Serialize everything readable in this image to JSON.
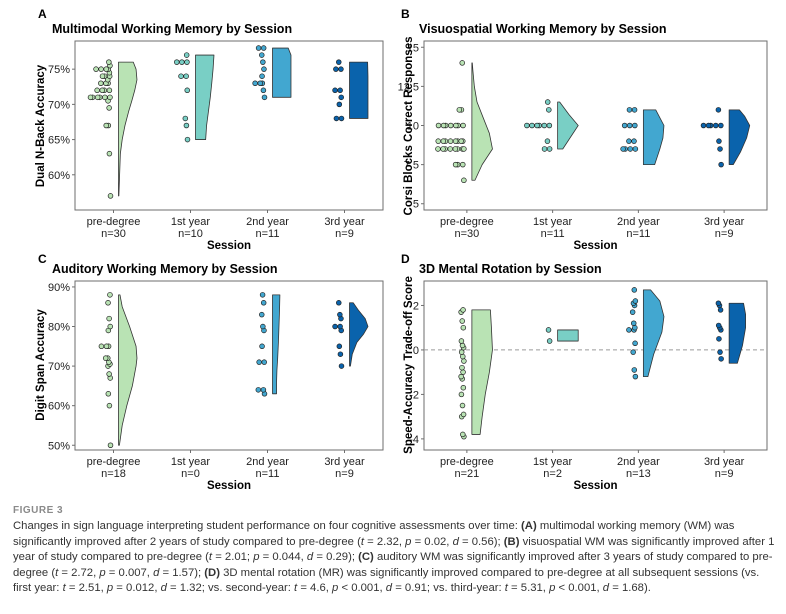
{
  "colors": {
    "pre-degree": "#b9e3b4",
    "1st year": "#79cfc5",
    "2nd year": "#42a7d0",
    "3rd year": "#0a63ac",
    "frame": "#6e6e6e",
    "reference_line": "#9a9a9a"
  },
  "chart_data": [
    {
      "type": "raincloud",
      "panel_letter": "A",
      "title": "Multimodal Working Memory by Session",
      "xlabel": "Session",
      "ylabel": "Dual N-Back Accuracy",
      "ylim": [
        55,
        79
      ],
      "yticks": [
        60,
        65,
        70,
        75
      ],
      "ytick_labels": [
        "60%",
        "65%",
        "70%",
        "75%"
      ],
      "categories": [
        "pre-degree",
        "1st year",
        "2nd year",
        "3rd year"
      ],
      "n_labels": [
        "n=30",
        "n=10",
        "n=11",
        "n=9"
      ],
      "grid": false,
      "reference_line": null,
      "series": [
        {
          "category": "pre-degree",
          "points": [
            57,
            63,
            67,
            67,
            69.5,
            70.5,
            71,
            71,
            71,
            71,
            71,
            71,
            72,
            72,
            72,
            72,
            73,
            73,
            73,
            73.5,
            74,
            74,
            74,
            74.5,
            75,
            75,
            75,
            75,
            75.5,
            76
          ],
          "density": [
            [
              57,
              0.02
            ],
            [
              60,
              0.06
            ],
            [
              63,
              0.1
            ],
            [
              65,
              0.2
            ],
            [
              67,
              0.35
            ],
            [
              69,
              0.55
            ],
            [
              70.5,
              0.72
            ],
            [
              72,
              0.88
            ],
            [
              73.5,
              1.0
            ],
            [
              75,
              0.95
            ],
            [
              76,
              0.8
            ]
          ]
        },
        {
          "category": "1st year",
          "points": [
            65,
            67,
            68,
            72,
            74,
            74,
            76,
            76,
            76,
            77
          ],
          "density": [
            [
              65,
              0.55
            ],
            [
              67,
              0.6
            ],
            [
              69,
              0.7
            ],
            [
              71,
              0.8
            ],
            [
              73,
              0.88
            ],
            [
              75,
              0.95
            ],
            [
              77,
              1.0
            ]
          ]
        },
        {
          "category": "2nd year",
          "points": [
            71,
            72,
            73,
            73,
            73,
            74,
            75,
            76,
            77,
            78,
            78
          ],
          "density": [
            [
              71,
              1.0
            ],
            [
              72.5,
              1.0
            ],
            [
              74,
              1.0
            ],
            [
              75.5,
              1.0
            ],
            [
              77,
              1.0
            ],
            [
              78,
              0.85
            ]
          ]
        },
        {
          "category": "3rd year",
          "points": [
            68,
            68,
            70,
            71,
            72,
            72,
            75,
            75,
            76
          ],
          "density": [
            [
              68,
              1.0
            ],
            [
              70,
              1.0
            ],
            [
              72,
              1.0
            ],
            [
              74,
              1.0
            ],
            [
              76,
              0.98
            ]
          ]
        }
      ]
    },
    {
      "type": "raincloud",
      "panel_letter": "B",
      "title": "Visuospatial Working Memory by Session",
      "xlabel": "Session",
      "ylabel": "Corsi Blocks Correct Responses",
      "ylim": [
        4.6,
        15.4
      ],
      "yticks": [
        5,
        7.5,
        10,
        12.5,
        15
      ],
      "ytick_labels": [
        "5",
        "7.5",
        "10",
        "12.5",
        "15"
      ],
      "categories": [
        "pre-degree",
        "1st year",
        "2nd year",
        "3rd year"
      ],
      "n_labels": [
        "n=30",
        "n=11",
        "n=11",
        "n=9"
      ],
      "grid": false,
      "reference_line": null,
      "series": [
        {
          "category": "pre-degree",
          "points": [
            6.5,
            7.5,
            7.5,
            7.5,
            8.5,
            8.5,
            8.5,
            8.5,
            8.5,
            8.5,
            8.5,
            8.5,
            9,
            9,
            9,
            9,
            9,
            9,
            9,
            9,
            10,
            10,
            10,
            10,
            10,
            10,
            10,
            11,
            11,
            14
          ],
          "density": [
            [
              6.5,
              0.15
            ],
            [
              7.5,
              0.5
            ],
            [
              8.5,
              1.0
            ],
            [
              9.5,
              0.85
            ],
            [
              10.5,
              0.55
            ],
            [
              11.5,
              0.25
            ],
            [
              12.5,
              0.12
            ],
            [
              13.5,
              0.05
            ],
            [
              14,
              0.02
            ]
          ]
        },
        {
          "category": "1st year",
          "points": [
            8.5,
            8.5,
            9,
            10,
            10,
            10,
            10,
            10,
            10,
            11,
            11.5
          ],
          "density": [
            [
              8.5,
              0.25
            ],
            [
              9.2,
              0.6
            ],
            [
              10,
              1.0
            ],
            [
              10.7,
              0.55
            ],
            [
              11.5,
              0.1
            ]
          ]
        },
        {
          "category": "2nd year",
          "points": [
            8.5,
            8.5,
            8.5,
            8.5,
            9,
            9,
            10,
            10,
            10,
            11,
            11
          ],
          "density": [
            [
              7.5,
              0.55
            ],
            [
              8.5,
              0.8
            ],
            [
              9.2,
              0.95
            ],
            [
              10,
              1.0
            ],
            [
              10.5,
              0.8
            ],
            [
              11,
              0.6
            ]
          ]
        },
        {
          "category": "3rd year",
          "points": [
            7.5,
            8.5,
            9,
            10,
            10,
            10,
            10,
            10,
            11
          ],
          "density": [
            [
              7.5,
              0.2
            ],
            [
              8.3,
              0.55
            ],
            [
              9.2,
              0.85
            ],
            [
              10,
              1.0
            ],
            [
              10.6,
              0.75
            ],
            [
              11,
              0.5
            ]
          ]
        }
      ]
    },
    {
      "type": "raincloud",
      "panel_letter": "C",
      "title": "Auditory Working Memory by Session",
      "xlabel": "Session",
      "ylabel": "Digit Span Accuracy",
      "ylim": [
        48.8,
        91.5
      ],
      "yticks": [
        50,
        60,
        70,
        80,
        90
      ],
      "ytick_labels": [
        "50%",
        "60%",
        "70%",
        "80%",
        "90%"
      ],
      "categories": [
        "pre-degree",
        "1st year",
        "2nd year",
        "3rd year"
      ],
      "n_labels": [
        "n=18",
        "n=0",
        "n=11",
        "n=9"
      ],
      "grid": false,
      "reference_line": null,
      "series": [
        {
          "category": "pre-degree",
          "points": [
            50,
            60,
            63,
            67,
            68,
            70,
            70.5,
            71,
            72,
            72,
            75,
            75,
            75,
            79,
            80,
            82,
            86,
            88
          ],
          "density": [
            [
              50,
              0.05
            ],
            [
              55,
              0.2
            ],
            [
              60,
              0.45
            ],
            [
              65,
              0.75
            ],
            [
              70,
              0.95
            ],
            [
              72,
              1.0
            ],
            [
              75,
              0.95
            ],
            [
              80,
              0.6
            ],
            [
              85,
              0.2
            ],
            [
              88,
              0.08
            ]
          ]
        },
        {
          "category": "1st year",
          "points": [],
          "density": []
        },
        {
          "category": "2nd year",
          "points": [
            63,
            64,
            64,
            71,
            71,
            75,
            79,
            80,
            83,
            86,
            88
          ],
          "density": [
            [
              63,
              0.22
            ],
            [
              66,
              0.22
            ],
            [
              69,
              0.24
            ],
            [
              72,
              0.28
            ],
            [
              76,
              0.32
            ],
            [
              80,
              0.35
            ],
            [
              84,
              0.38
            ],
            [
              88,
              0.4
            ]
          ]
        },
        {
          "category": "3rd year",
          "points": [
            70,
            73,
            75,
            79,
            80,
            80,
            82,
            83,
            86
          ],
          "density": [
            [
              70,
              0.05
            ],
            [
              73,
              0.15
            ],
            [
              76,
              0.4
            ],
            [
              78,
              0.75
            ],
            [
              80,
              1.0
            ],
            [
              82,
              0.85
            ],
            [
              84,
              0.5
            ],
            [
              86,
              0.2
            ]
          ]
        }
      ]
    },
    {
      "type": "raincloud",
      "panel_letter": "D",
      "title": "3D Mental Rotation by Session",
      "xlabel": "Session",
      "ylabel": "Speed-Accuracy Trade-off Score",
      "ylim": [
        -4.5,
        3.1
      ],
      "yticks": [
        -4,
        -2,
        0,
        2
      ],
      "ytick_labels": [
        "-4",
        "-2",
        "0",
        "2"
      ],
      "categories": [
        "pre-degree",
        "1st year",
        "2nd year",
        "3rd year"
      ],
      "n_labels": [
        "n=21",
        "n=2",
        "n=13",
        "n=9"
      ],
      "grid": false,
      "reference_line": 0,
      "series": [
        {
          "category": "pre-degree",
          "points": [
            -3.9,
            -3.8,
            -3.0,
            -2.9,
            -2.5,
            -2.0,
            -1.7,
            -1.3,
            -1.2,
            -1.0,
            -0.8,
            -0.5,
            -0.3,
            -0.1,
            0.1,
            0.2,
            0.4,
            1.0,
            1.3,
            1.7,
            1.8
          ],
          "density": [
            [
              -3.8,
              0.4
            ],
            [
              -3,
              0.5
            ],
            [
              -2,
              0.65
            ],
            [
              -1,
              0.85
            ],
            [
              0,
              1.0
            ],
            [
              1,
              0.95
            ],
            [
              1.8,
              0.9
            ]
          ]
        },
        {
          "category": "1st year",
          "points": [
            0.4,
            0.9
          ],
          "density": [
            [
              0.4,
              1.0
            ],
            [
              0.9,
              1.0
            ]
          ]
        },
        {
          "category": "2nd year",
          "points": [
            -1.2,
            -0.9,
            -0.1,
            0.3,
            0.9,
            0.9,
            1.0,
            1.2,
            1.7,
            2.0,
            2.1,
            2.2,
            2.7
          ],
          "density": [
            [
              -1.2,
              0.22
            ],
            [
              -0.2,
              0.5
            ],
            [
              0.8,
              0.9
            ],
            [
              1.5,
              1.0
            ],
            [
              2.2,
              0.8
            ],
            [
              2.7,
              0.35
            ]
          ]
        },
        {
          "category": "3rd year",
          "points": [
            -0.4,
            -0.1,
            0.5,
            0.9,
            1.0,
            1.1,
            1.8,
            2.0,
            2.1
          ],
          "density": [
            [
              -0.6,
              0.4
            ],
            [
              0.2,
              0.65
            ],
            [
              1.0,
              0.8
            ],
            [
              1.6,
              0.8
            ],
            [
              2.1,
              0.7
            ]
          ]
        }
      ]
    }
  ],
  "figure_label": "FIGURE 3",
  "caption_html": "Changes in sign language interpreting student performance on four cognitive assessments over time: <b>(A)</b> multimodal working memory (WM) was significantly improved after 2 years of study compared to pre-degree (<i>t</i> = 2.32, <i>p</i> = 0.02, <i>d</i> = 0.56); <b>(B)</b> visuospatial WM was significantly improved after 1 year of study compared to pre-degree (<i>t</i> = 2.01; <i>p</i> = 0.044, <i>d</i> = 0.29); <b>(C)</b> auditory WM was significantly improved after 3 years of study compared to pre-degree (<i>t</i> = 2.72, <i>p</i> = 0.007, <i>d</i> = 1.57); <b>(D)</b> 3D mental rotation (MR) was significantly improved compared to pre-degree at all subsequent sessions (vs. first year: <i>t</i> = 2.51, <i>p</i> = 0.012, <i>d</i> = 1.32; vs. second-year: <i>t</i> = 4.6, <i>p</i> &lt; 0.001, <i>d</i> = 0.91; vs. third-year: <i>t</i> = 5.31, <i>p</i> &lt; 0.001, <i>d</i> = 1.68)."
}
